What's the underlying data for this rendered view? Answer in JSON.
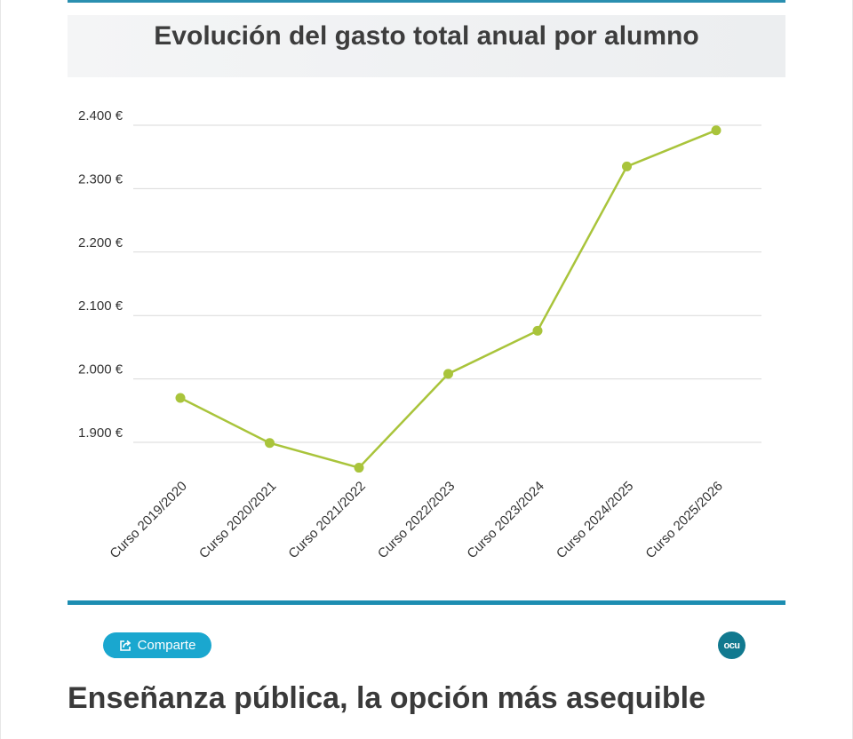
{
  "chart_data": {
    "type": "line",
    "title": "Evolución del gasto total anual por alumno",
    "categories": [
      "Curso 2019/2020",
      "Curso 2020/2021",
      "Curso 2021/2022",
      "Curso 2022/2023",
      "Curso 2023/2024",
      "Curso 2024/2025",
      "Curso 2025/2026"
    ],
    "values": [
      1970,
      1899,
      1860,
      2008,
      2076,
      2335,
      2392
    ],
    "ylim": [
      1850,
      2400
    ],
    "yticks": [
      1900,
      2000,
      2100,
      2200,
      2300,
      2400
    ],
    "ytick_labels": [
      "1.900 €",
      "2.000 €",
      "2.100 €",
      "2.200 €",
      "2.300 €",
      "2.400 €"
    ],
    "xlabel": "",
    "ylabel": "",
    "grid": true,
    "line_color": "#a9c43b",
    "grid_color": "#d9d9d9"
  },
  "share": {
    "label": "Comparte",
    "icon": "share-icon"
  },
  "logo": {
    "text": "ocu",
    "icon": "ocu-logo"
  },
  "section": {
    "heading": "Enseñanza pública, la opción más asequible"
  },
  "colors": {
    "accent": "#1c8db1",
    "button": "#1aa7cf",
    "text": "#3d3d3d"
  }
}
